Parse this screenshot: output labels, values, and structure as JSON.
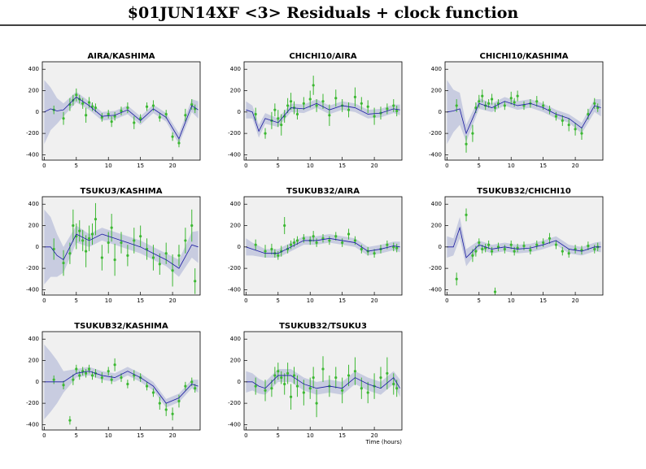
{
  "title": "$01JUN14XF <3> Residuals + clock function",
  "chart_data": [
    {
      "type": "scatter",
      "title": "AIRA/KASHIMA",
      "xlim": [
        -0.3,
        24.3
      ],
      "ylim": [
        -450,
        470
      ],
      "xticks": [
        0,
        5,
        10,
        15,
        20
      ],
      "yticks": [
        -400,
        -200,
        0,
        200,
        400
      ],
      "point_color": "#3cb832",
      "line_color": "#1a1aa0",
      "band_color": "#c8cce0",
      "x": [
        1.5,
        3,
        4,
        4.5,
        5,
        5.5,
        6,
        6.5,
        7,
        7.5,
        8,
        9,
        10,
        10.5,
        11,
        12,
        13,
        14,
        15,
        16,
        17,
        18,
        19,
        20,
        21,
        22,
        23,
        23.5
      ],
      "y": [
        20,
        -60,
        70,
        110,
        160,
        120,
        80,
        -30,
        90,
        50,
        40,
        -50,
        -20,
        -90,
        -40,
        10,
        40,
        -100,
        -60,
        50,
        60,
        -50,
        -20,
        -230,
        -290,
        -30,
        70,
        30
      ],
      "err": [
        40,
        60,
        60,
        50,
        60,
        40,
        50,
        70,
        50,
        40,
        40,
        40,
        40,
        50,
        40,
        40,
        50,
        60,
        40,
        40,
        50,
        40,
        40,
        40,
        40,
        60,
        50,
        40
      ],
      "clock": {
        "x": [
          0,
          1,
          2,
          3,
          5,
          7,
          9,
          11,
          13,
          15,
          17,
          19,
          21,
          23,
          24
        ],
        "y": [
          0,
          30,
          10,
          20,
          140,
          60,
          -40,
          -30,
          20,
          -80,
          30,
          -50,
          -250,
          60,
          20
        ],
        "band": [
          300,
          200,
          120,
          60,
          50,
          40,
          40,
          40,
          40,
          40,
          40,
          40,
          50,
          60,
          80
        ]
      }
    },
    {
      "type": "scatter",
      "title": "CHICHI10/AIRA",
      "xlim": [
        -0.3,
        24.3
      ],
      "ylim": [
        -450,
        470
      ],
      "xticks": [
        0,
        5,
        10,
        15,
        20
      ],
      "yticks": [
        -400,
        -200,
        0,
        200,
        400
      ],
      "point_color": "#3cb832",
      "line_color": "#1a1aa0",
      "band_color": "#c8cce0",
      "x": [
        1.5,
        3,
        4,
        4.5,
        5,
        5.5,
        6,
        6.5,
        7,
        7.5,
        8,
        9,
        10,
        10.5,
        11,
        12,
        13,
        14,
        15,
        16,
        17,
        18,
        19,
        20,
        21,
        22,
        23,
        23.5
      ],
      "y": [
        -20,
        -200,
        -80,
        20,
        -60,
        -120,
        -40,
        60,
        100,
        40,
        -20,
        80,
        120,
        250,
        60,
        100,
        -30,
        130,
        60,
        20,
        140,
        80,
        50,
        -40,
        -10,
        30,
        60,
        10
      ],
      "err": [
        60,
        50,
        80,
        60,
        80,
        100,
        60,
        70,
        80,
        60,
        50,
        60,
        80,
        90,
        60,
        70,
        100,
        80,
        60,
        70,
        90,
        60,
        60,
        80,
        60,
        50,
        60,
        50
      ],
      "clock": {
        "x": [
          0,
          1,
          2,
          3,
          5,
          7,
          9,
          11,
          13,
          15,
          17,
          19,
          21,
          23,
          24
        ],
        "y": [
          20,
          0,
          -180,
          -60,
          -100,
          40,
          30,
          80,
          20,
          60,
          40,
          -20,
          -10,
          30,
          20
        ],
        "band": [
          80,
          60,
          60,
          50,
          40,
          40,
          40,
          40,
          40,
          40,
          40,
          40,
          40,
          40,
          50
        ]
      }
    },
    {
      "type": "scatter",
      "title": "CHICHI10/KASHIMA",
      "xlim": [
        -0.3,
        24.3
      ],
      "ylim": [
        -450,
        470
      ],
      "xticks": [
        0,
        5,
        10,
        15,
        20
      ],
      "yticks": [
        -400,
        -200,
        0,
        200,
        400
      ],
      "point_color": "#3cb832",
      "line_color": "#1a1aa0",
      "band_color": "#c8cce0",
      "x": [
        1.5,
        3,
        4,
        4.5,
        5,
        5.5,
        6,
        6.5,
        7,
        7.5,
        8,
        9,
        10,
        10.5,
        11,
        12,
        13,
        14,
        15,
        16,
        17,
        18,
        19,
        20,
        21,
        22,
        23,
        23.5
      ],
      "y": [
        60,
        -300,
        -200,
        40,
        100,
        150,
        60,
        80,
        120,
        40,
        80,
        60,
        130,
        90,
        150,
        60,
        80,
        100,
        60,
        20,
        -40,
        -80,
        -120,
        -160,
        -200,
        -20,
        80,
        40
      ],
      "err": [
        60,
        80,
        80,
        50,
        60,
        60,
        40,
        40,
        50,
        40,
        40,
        40,
        60,
        40,
        50,
        40,
        40,
        50,
        40,
        40,
        40,
        50,
        60,
        60,
        60,
        50,
        50,
        40
      ],
      "clock": {
        "x": [
          0,
          1,
          2,
          3,
          5,
          7,
          9,
          11,
          13,
          15,
          17,
          19,
          21,
          23,
          24
        ],
        "y": [
          0,
          10,
          30,
          -200,
          80,
          40,
          100,
          60,
          80,
          40,
          -20,
          -60,
          -150,
          60,
          40
        ],
        "band": [
          300,
          200,
          150,
          80,
          50,
          40,
          40,
          40,
          40,
          40,
          40,
          40,
          50,
          60,
          80
        ]
      }
    },
    {
      "type": "scatter",
      "title": "TSUKU3/KASHIMA",
      "xlim": [
        -0.3,
        24.3
      ],
      "ylim": [
        -450,
        470
      ],
      "xticks": [
        0,
        5,
        10,
        15,
        20
      ],
      "yticks": [
        -400,
        -200,
        0,
        200,
        400
      ],
      "point_color": "#3cb832",
      "line_color": "#1a1aa0",
      "band_color": "#c8cce0",
      "x": [
        1.5,
        3,
        4,
        4.5,
        5,
        5.5,
        6,
        6.5,
        7,
        7.5,
        8,
        9,
        10,
        10.5,
        11,
        12,
        13,
        14,
        15,
        16,
        17,
        18,
        19,
        20,
        21,
        22,
        23,
        23.5
      ],
      "y": [
        -20,
        -150,
        -60,
        200,
        100,
        150,
        60,
        -40,
        80,
        120,
        260,
        -100,
        40,
        180,
        -120,
        40,
        -80,
        60,
        100,
        -20,
        -100,
        -160,
        -60,
        -220,
        -80,
        60,
        200,
        -320
      ],
      "err": [
        100,
        120,
        100,
        150,
        120,
        100,
        100,
        150,
        120,
        100,
        150,
        120,
        100,
        130,
        150,
        100,
        100,
        120,
        100,
        100,
        120,
        100,
        100,
        150,
        100,
        120,
        150,
        120
      ],
      "clock": {
        "x": [
          0,
          1,
          2,
          3,
          5,
          7,
          9,
          11,
          13,
          15,
          17,
          19,
          21,
          23,
          24
        ],
        "y": [
          0,
          0,
          -80,
          -120,
          120,
          60,
          120,
          80,
          40,
          0,
          -60,
          -120,
          -200,
          20,
          0
        ],
        "band": [
          350,
          280,
          200,
          120,
          80,
          60,
          60,
          60,
          60,
          60,
          60,
          60,
          80,
          120,
          150
        ]
      }
    },
    {
      "type": "scatter",
      "title": "TSUKUB32/AIRA",
      "xlim": [
        -0.3,
        24.3
      ],
      "ylim": [
        -450,
        470
      ],
      "xticks": [
        0,
        5,
        10,
        15,
        20
      ],
      "yticks": [
        -400,
        -200,
        0,
        200,
        400
      ],
      "point_color": "#3cb832",
      "line_color": "#1a1aa0",
      "band_color": "#c8cce0",
      "x": [
        1.5,
        3,
        4,
        4.5,
        5,
        5.5,
        6,
        6.5,
        7,
        7.5,
        8,
        9,
        10,
        10.5,
        11,
        12,
        13,
        14,
        15,
        16,
        17,
        18,
        19,
        20,
        21,
        22,
        23,
        23.5
      ],
      "y": [
        20,
        -40,
        -20,
        -60,
        -80,
        -40,
        200,
        -20,
        20,
        40,
        60,
        80,
        60,
        100,
        40,
        80,
        60,
        100,
        40,
        120,
        60,
        -20,
        -40,
        -60,
        -20,
        20,
        0,
        -10
      ],
      "err": [
        50,
        60,
        50,
        40,
        40,
        50,
        80,
        40,
        40,
        40,
        40,
        40,
        40,
        50,
        40,
        40,
        40,
        40,
        40,
        50,
        40,
        40,
        40,
        40,
        40,
        40,
        40,
        40
      ],
      "clock": {
        "x": [
          0,
          1,
          2,
          3,
          5,
          7,
          9,
          11,
          13,
          15,
          17,
          19,
          21,
          23,
          24
        ],
        "y": [
          0,
          -20,
          -40,
          -60,
          -60,
          0,
          60,
          60,
          80,
          60,
          40,
          -40,
          -20,
          10,
          0
        ],
        "band": [
          80,
          60,
          50,
          40,
          40,
          40,
          40,
          40,
          40,
          40,
          40,
          40,
          40,
          40,
          50
        ]
      }
    },
    {
      "type": "scatter",
      "title": "TSUKUB32/CHICHI10",
      "xlim": [
        -0.3,
        24.3
      ],
      "ylim": [
        -450,
        470
      ],
      "xticks": [
        0,
        5,
        10,
        15,
        20
      ],
      "yticks": [
        -400,
        -200,
        0,
        200,
        400
      ],
      "point_color": "#3cb832",
      "line_color": "#1a1aa0",
      "band_color": "#c8cce0",
      "x": [
        1.5,
        3,
        4,
        4.5,
        5,
        5.5,
        6,
        6.5,
        7,
        7.5,
        8,
        9,
        10,
        10.5,
        11,
        12,
        13,
        14,
        15,
        16,
        17,
        18,
        19,
        20,
        21,
        22,
        23,
        23.5
      ],
      "y": [
        -300,
        300,
        -80,
        -40,
        40,
        -20,
        -10,
        20,
        -40,
        -420,
        0,
        -20,
        20,
        -40,
        -10,
        10,
        -30,
        20,
        40,
        80,
        20,
        -40,
        -60,
        -20,
        -30,
        10,
        -20,
        0
      ],
      "err": [
        60,
        60,
        60,
        50,
        40,
        40,
        40,
        40,
        40,
        40,
        40,
        40,
        40,
        40,
        40,
        40,
        40,
        40,
        40,
        50,
        40,
        40,
        40,
        40,
        40,
        40,
        40,
        40
      ],
      "clock": {
        "x": [
          0,
          1,
          2,
          3,
          5,
          7,
          9,
          11,
          13,
          15,
          17,
          19,
          21,
          23,
          24
        ],
        "y": [
          0,
          0,
          180,
          -100,
          20,
          -20,
          0,
          -20,
          -10,
          20,
          60,
          -20,
          -40,
          0,
          0
        ],
        "band": [
          100,
          80,
          100,
          80,
          40,
          40,
          40,
          40,
          40,
          40,
          40,
          40,
          40,
          40,
          50
        ]
      }
    },
    {
      "type": "scatter",
      "title": "TSUKUB32/KASHIMA",
      "xlim": [
        -0.3,
        24.3
      ],
      "ylim": [
        -450,
        470
      ],
      "xticks": [
        0,
        5,
        10,
        15,
        20
      ],
      "yticks": [
        -400,
        -200,
        0,
        200,
        400
      ],
      "point_color": "#3cb832",
      "line_color": "#1a1aa0",
      "band_color": "#c8cce0",
      "x": [
        1.5,
        3,
        4,
        4.5,
        5,
        5.5,
        6,
        6.5,
        7,
        7.5,
        8,
        9,
        10,
        10.5,
        11,
        12,
        13,
        14,
        15,
        16,
        17,
        18,
        19,
        20,
        21,
        22,
        23,
        23.5
      ],
      "y": [
        20,
        -30,
        -360,
        20,
        120,
        60,
        100,
        80,
        120,
        60,
        80,
        40,
        100,
        20,
        160,
        40,
        -20,
        60,
        40,
        -40,
        -100,
        -200,
        -260,
        -300,
        -180,
        -40,
        0,
        -60
      ],
      "err": [
        40,
        40,
        40,
        50,
        40,
        40,
        40,
        40,
        40,
        40,
        40,
        50,
        40,
        40,
        60,
        40,
        40,
        50,
        40,
        40,
        40,
        60,
        60,
        60,
        60,
        40,
        40,
        40
      ],
      "clock": {
        "x": [
          0,
          1,
          2,
          3,
          5,
          7,
          9,
          11,
          13,
          15,
          17,
          19,
          21,
          23,
          24
        ],
        "y": [
          0,
          0,
          0,
          0,
          80,
          100,
          60,
          40,
          100,
          40,
          -40,
          -200,
          -150,
          -20,
          -40
        ],
        "band": [
          350,
          280,
          200,
          100,
          40,
          40,
          40,
          40,
          40,
          40,
          40,
          40,
          40,
          40,
          60
        ]
      }
    },
    {
      "type": "scatter",
      "title": "TSUKUB32/TSUKU3",
      "xlabel": "Time (hours)",
      "xlim": [
        -0.3,
        24.3
      ],
      "ylim": [
        -450,
        470
      ],
      "xticks": [
        0,
        5,
        10,
        15,
        20
      ],
      "yticks": [
        -400,
        -200,
        0,
        200,
        400
      ],
      "point_color": "#3cb832",
      "line_color": "#1a1aa0",
      "band_color": "#c8cce0",
      "x": [
        1.5,
        3,
        4,
        4.5,
        5,
        5.5,
        6,
        6.5,
        7,
        7.5,
        8,
        9,
        10,
        10.5,
        11,
        12,
        13,
        14,
        15,
        16,
        17,
        18,
        19,
        20,
        21,
        22,
        23,
        23.5
      ],
      "y": [
        -40,
        -80,
        -60,
        60,
        100,
        40,
        -20,
        80,
        -140,
        60,
        -40,
        -100,
        -60,
        40,
        -200,
        120,
        -40,
        40,
        -80,
        60,
        100,
        -60,
        -100,
        -40,
        40,
        80,
        -20,
        -60
      ],
      "err": [
        80,
        100,
        80,
        80,
        80,
        60,
        100,
        100,
        120,
        80,
        100,
        120,
        100,
        100,
        130,
        120,
        100,
        100,
        120,
        100,
        130,
        100,
        100,
        120,
        100,
        150,
        100,
        80
      ],
      "clock": {
        "x": [
          0,
          1,
          2,
          3,
          5,
          7,
          9,
          11,
          13,
          15,
          17,
          19,
          21,
          23,
          24
        ],
        "y": [
          0,
          0,
          -40,
          -60,
          60,
          60,
          -20,
          -60,
          -40,
          -60,
          40,
          -20,
          -60,
          40,
          -60
        ],
        "band": [
          100,
          80,
          70,
          60,
          60,
          60,
          60,
          60,
          60,
          60,
          60,
          60,
          60,
          60,
          80
        ]
      }
    }
  ]
}
